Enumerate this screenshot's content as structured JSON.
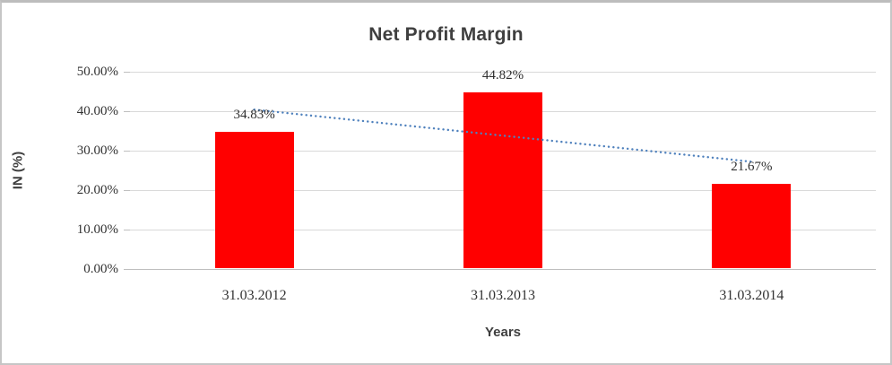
{
  "window": {
    "background": "#ffffff",
    "border_color": "#c6c6c6"
  },
  "chart_data": {
    "type": "bar",
    "title": "Net Profit Margin",
    "xlabel": "Years",
    "ylabel": "IN (%)",
    "categories": [
      "31.03.2012",
      "31.03.2013",
      "31.03.2014"
    ],
    "values": [
      34.83,
      44.82,
      21.67
    ],
    "data_labels": [
      "34.83%",
      "44.82%",
      "21.67%"
    ],
    "ylim": [
      0,
      50
    ],
    "yticks": [
      {
        "value": 50,
        "label": "50.00%"
      },
      {
        "value": 40,
        "label": "40.00%"
      },
      {
        "value": 30,
        "label": "30.00%"
      },
      {
        "value": 20,
        "label": "20.00%"
      },
      {
        "value": 10,
        "label": "10.00%"
      },
      {
        "value": 0,
        "label": "0.00%"
      }
    ],
    "grid": true,
    "legend": "none",
    "bar_color": "#ff0000",
    "gridline_color": "#d9d9d9",
    "axis_color": "#bfbfbf",
    "text_color": "#333333",
    "title_color": "#3f3f3f",
    "trendline": {
      "type": "linear",
      "style": "dotted",
      "color": "#4f81bd",
      "start_value": 40.4,
      "end_value": 27.2
    }
  }
}
